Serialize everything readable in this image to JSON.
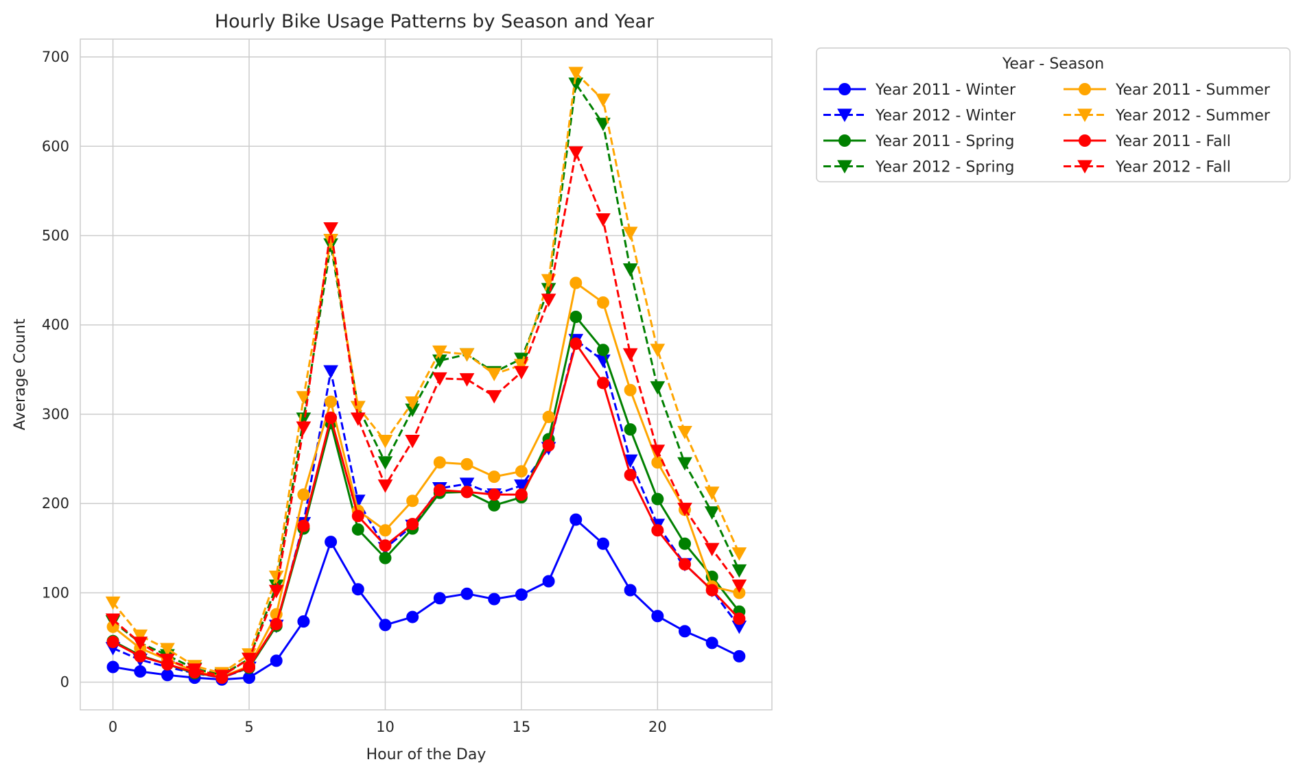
{
  "chart_data": {
    "type": "line",
    "title": "Hourly Bike Usage Patterns by Season and Year",
    "xlabel": "Hour of the Day",
    "ylabel": "Average Count",
    "xlim": [
      -1.2,
      24.2
    ],
    "ylim": [
      -31,
      720
    ],
    "xticks": [
      0,
      5,
      10,
      15,
      20
    ],
    "yticks": [
      0,
      100,
      200,
      300,
      400,
      500,
      600,
      700
    ],
    "grid": true,
    "legend_title": "Year - Season",
    "legend_position": "outside-top-right",
    "x": [
      0,
      1,
      2,
      3,
      4,
      5,
      6,
      7,
      8,
      9,
      10,
      11,
      12,
      13,
      14,
      15,
      16,
      17,
      18,
      19,
      20,
      21,
      22,
      23
    ],
    "series": [
      {
        "name": "Year 2011 - Winter",
        "color": "#0000ff",
        "marker": "circle",
        "dashed": false,
        "values": [
          17,
          12,
          8,
          5,
          3,
          5,
          24,
          68,
          157,
          104,
          64,
          73,
          94,
          99,
          93,
          98,
          113,
          182,
          155,
          103,
          74,
          57,
          44,
          29
        ]
      },
      {
        "name": "Year 2012 - Winter",
        "color": "#0000ff",
        "marker": "triangle-down",
        "dashed": true,
        "values": [
          38,
          25,
          17,
          10,
          5,
          16,
          63,
          178,
          348,
          203,
          150,
          175,
          217,
          222,
          210,
          220,
          262,
          383,
          360,
          248,
          176,
          132,
          103,
          62
        ]
      },
      {
        "name": "Year 2011 - Spring",
        "color": "#008000",
        "marker": "circle",
        "dashed": false,
        "values": [
          46,
          30,
          20,
          10,
          6,
          16,
          63,
          172,
          290,
          171,
          139,
          172,
          212,
          213,
          198,
          207,
          272,
          409,
          372,
          283,
          205,
          155,
          118,
          79
        ]
      },
      {
        "name": "Year 2012 - Spring",
        "color": "#008000",
        "marker": "triangle-down",
        "dashed": true,
        "values": [
          68,
          44,
          30,
          15,
          8,
          26,
          108,
          295,
          490,
          308,
          246,
          305,
          360,
          367,
          347,
          362,
          440,
          670,
          625,
          462,
          330,
          245,
          190,
          125
        ]
      },
      {
        "name": "Year 2011 - Summer",
        "color": "#ffa500",
        "marker": "circle",
        "dashed": false,
        "values": [
          62,
          38,
          25,
          12,
          6,
          18,
          76,
          210,
          314,
          192,
          170,
          203,
          246,
          244,
          230,
          236,
          297,
          447,
          425,
          327,
          246,
          193,
          107,
          100
        ]
      },
      {
        "name": "Year 2012 - Summer",
        "color": "#ffa500",
        "marker": "triangle-down",
        "dashed": true,
        "values": [
          89,
          52,
          37,
          18,
          10,
          31,
          118,
          319,
          495,
          308,
          270,
          313,
          370,
          367,
          345,
          355,
          450,
          682,
          652,
          503,
          372,
          280,
          212,
          144
        ]
      },
      {
        "name": "Year 2011 - Fall",
        "color": "#ff0000",
        "marker": "circle",
        "dashed": false,
        "values": [
          45,
          29,
          20,
          11,
          5,
          17,
          65,
          175,
          296,
          186,
          153,
          177,
          215,
          213,
          210,
          210,
          265,
          379,
          335,
          232,
          170,
          132,
          103,
          71
        ]
      },
      {
        "name": "Year 2012 - Fall",
        "color": "#ff0000",
        "marker": "triangle-down",
        "dashed": true,
        "values": [
          70,
          44,
          25,
          14,
          7,
          26,
          102,
          285,
          508,
          295,
          220,
          270,
          340,
          339,
          320,
          347,
          428,
          593,
          518,
          367,
          259,
          194,
          149,
          108
        ]
      }
    ]
  }
}
